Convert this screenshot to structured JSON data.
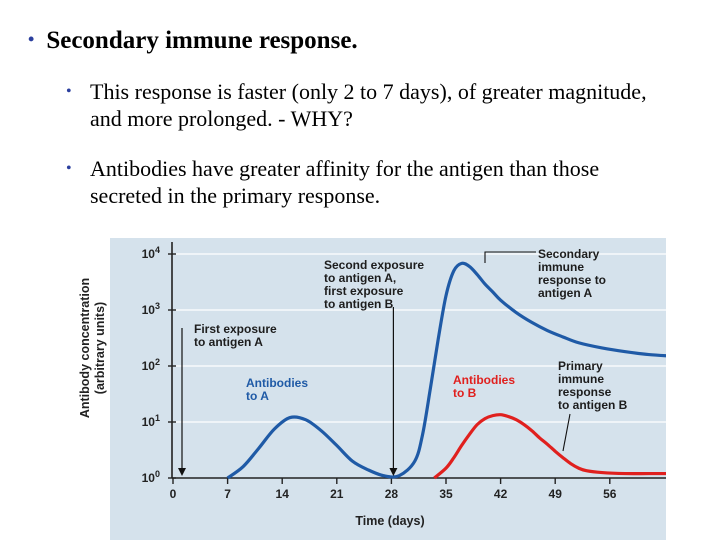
{
  "slide": {
    "title_bullet": "•",
    "title": "Secondary immune response.",
    "bullets": [
      {
        "marker": "•",
        "text": "This response is faster (only 2 to 7 days), of greater magnitude, and more prolonged.  - WHY?"
      },
      {
        "marker": "•",
        "text": "Antibodies have greater affinity for the antigen than those secreted in the primary response."
      }
    ]
  },
  "colors": {
    "bullet": "#2b3f9e",
    "plot_bg": "#d5e2ec",
    "series_a": "#1f5aa6",
    "series_b": "#e0201e"
  },
  "chart_data": {
    "type": "line",
    "xlabel": "Time (days)",
    "ylabel": "Antibody concentration",
    "ylabel_units": "(arbitrary units)",
    "x_ticks": [
      0,
      7,
      14,
      21,
      28,
      35,
      42,
      49,
      56
    ],
    "x_tick_labels": [
      "0",
      "7",
      "14",
      "21",
      "28",
      "35",
      "42",
      "49",
      "56"
    ],
    "xlim": [
      -2,
      64
    ],
    "y_scale": "log",
    "ylim": [
      1,
      20000
    ],
    "y_ticks": [
      1,
      10,
      100,
      1000,
      10000
    ],
    "y_tick_labels": [
      {
        "base": "10",
        "exp": "0"
      },
      {
        "base": "10",
        "exp": "1"
      },
      {
        "base": "10",
        "exp": "2"
      },
      {
        "base": "10",
        "exp": "3"
      },
      {
        "base": "10",
        "exp": "4"
      }
    ],
    "grid": "horizontal",
    "series": [
      {
        "name": "Antibodies to A",
        "x": [
          7,
          9,
          11,
          13,
          15,
          17,
          19,
          21,
          23,
          25,
          27,
          29,
          31,
          32,
          33,
          34,
          35,
          36,
          37,
          38,
          39,
          40,
          41,
          42,
          44,
          46,
          48,
          50,
          52,
          55,
          58,
          61,
          64
        ],
        "y": [
          1,
          1.6,
          3.4,
          7.5,
          12,
          11,
          7,
          3.8,
          2,
          1.4,
          1.1,
          1.1,
          2,
          6,
          40,
          300,
          1800,
          5000,
          6800,
          6000,
          4300,
          2900,
          2100,
          1500,
          900,
          600,
          430,
          330,
          260,
          210,
          180,
          160,
          150
        ]
      },
      {
        "name": "Antibodies to B",
        "x": [
          33.5,
          35,
          36,
          37,
          38,
          39,
          40,
          41,
          42,
          43,
          44,
          45,
          46,
          47,
          48,
          49,
          50,
          51,
          52,
          53,
          55,
          58,
          61,
          64
        ],
        "y": [
          1,
          1.5,
          2.3,
          3.8,
          6,
          9,
          11.5,
          13,
          13.5,
          12.5,
          11,
          9,
          7,
          5.2,
          4,
          3,
          2.3,
          1.8,
          1.5,
          1.35,
          1.25,
          1.2,
          1.2,
          1.2
        ]
      }
    ],
    "annotations": {
      "first_exposure": {
        "lines": [
          "First exposure",
          "to antigen A"
        ],
        "day": 0
      },
      "second_exposure": {
        "lines": [
          "Second exposure",
          "to antigen A,",
          "first exposure",
          "to antigen B"
        ],
        "day": 28
      },
      "label_a": {
        "lines": [
          "Antibodies",
          "to A"
        ]
      },
      "label_b": {
        "lines": [
          "Antibodies",
          "to B"
        ]
      },
      "secondary": {
        "lines": [
          "Secondary",
          "immune",
          "response to",
          "antigen A"
        ]
      },
      "primary": {
        "lines": [
          "Primary",
          "immune",
          "response",
          "to antigen B"
        ]
      }
    }
  }
}
